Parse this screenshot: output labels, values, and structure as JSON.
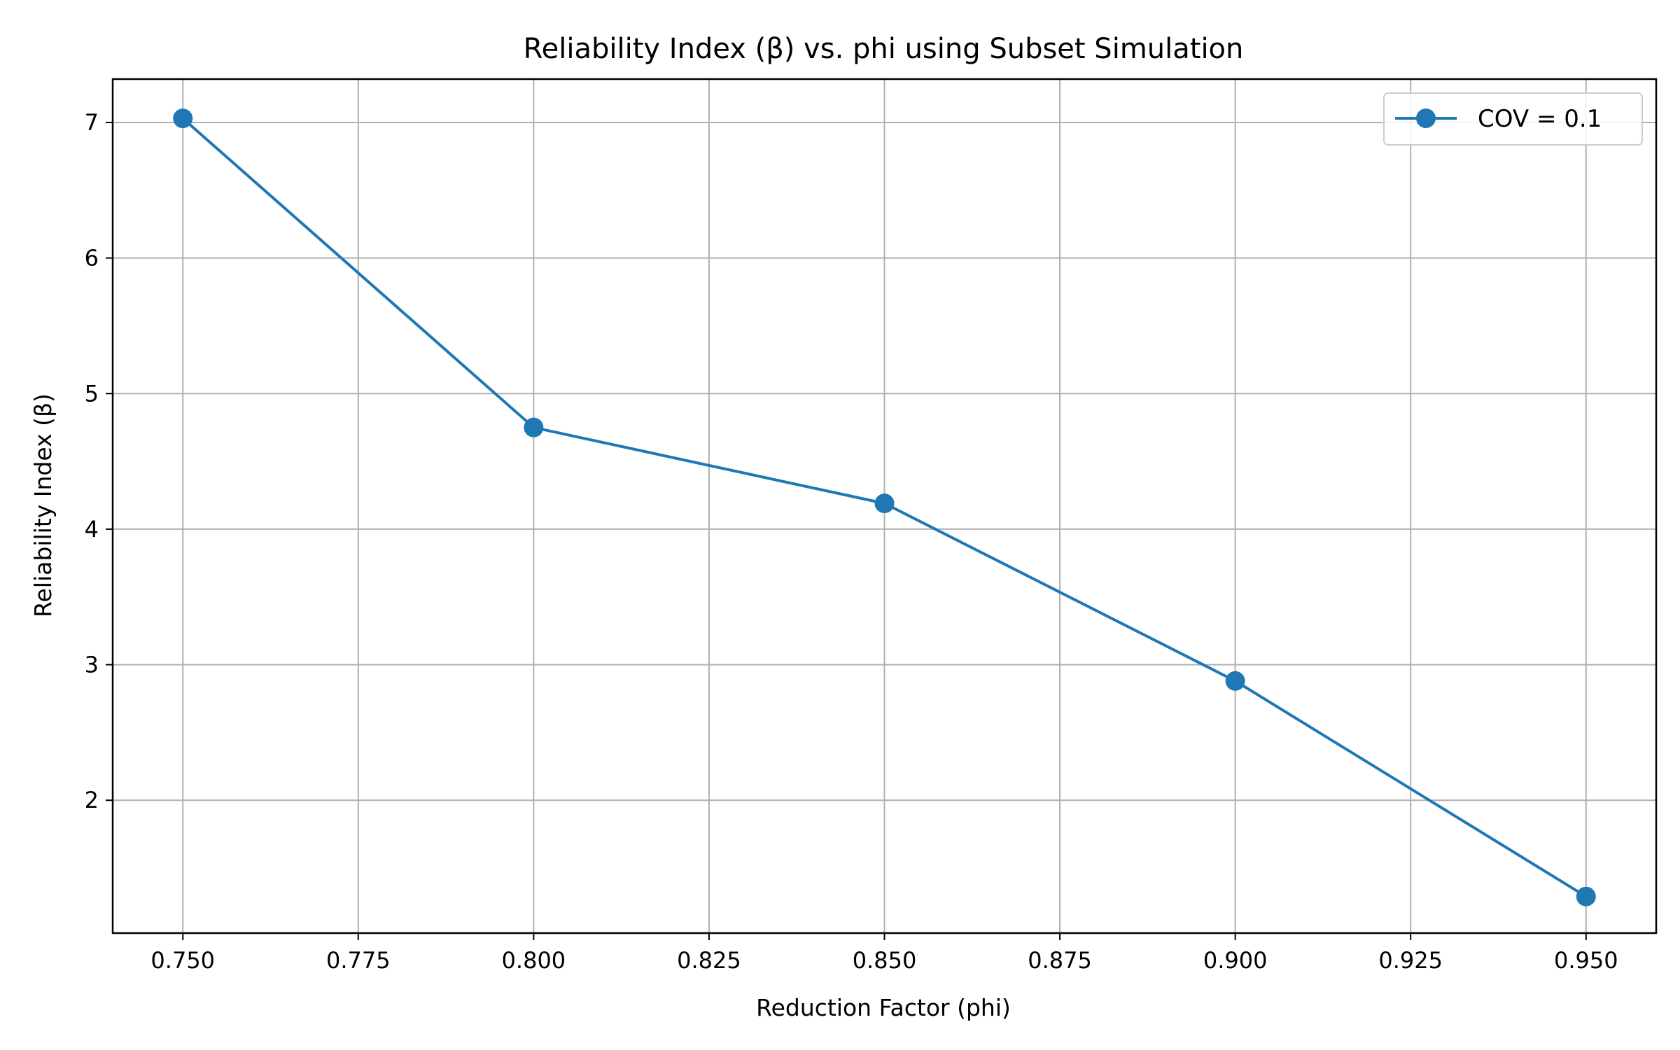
{
  "chart_data": {
    "type": "line",
    "title": "Reliability Index (β) vs. phi using Subset Simulation",
    "xlabel": "Reduction Factor (phi)",
    "ylabel": "Reliability Index (β)",
    "x_ticks": [
      "0.750",
      "0.775",
      "0.800",
      "0.825",
      "0.850",
      "0.875",
      "0.900",
      "0.925",
      "0.950"
    ],
    "x_tick_values": [
      0.75,
      0.775,
      0.8,
      0.825,
      0.85,
      0.875,
      0.9,
      0.925,
      0.95
    ],
    "y_ticks": [
      "2",
      "3",
      "4",
      "5",
      "6",
      "7"
    ],
    "y_tick_values": [
      2,
      3,
      4,
      5,
      6,
      7
    ],
    "xlim": [
      0.74,
      0.96
    ],
    "ylim": [
      1.02,
      7.32
    ],
    "grid": true,
    "legend_position": "top-right",
    "series": [
      {
        "name": "COV = 0.1",
        "color": "#1f77b4",
        "marker": "circle",
        "x": [
          0.75,
          0.8,
          0.85,
          0.9,
          0.95
        ],
        "y": [
          7.03,
          4.75,
          4.19,
          2.88,
          1.29
        ]
      }
    ]
  }
}
